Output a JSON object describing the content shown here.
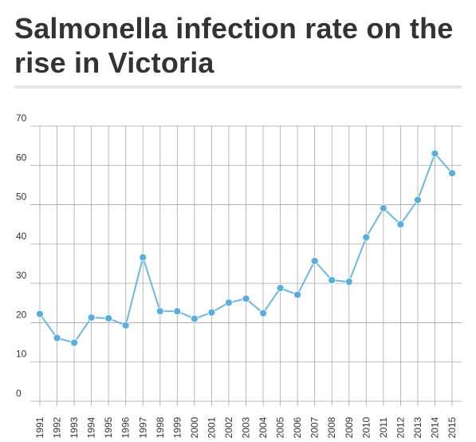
{
  "chart_data": {
    "type": "line",
    "title": "Salmonella infection rate on the rise in Victoria",
    "xlabel": "",
    "ylabel": "",
    "ylim": [
      0,
      70
    ],
    "yticks": [
      0,
      10,
      20,
      30,
      40,
      50,
      60,
      70
    ],
    "grid": true,
    "legend": "none",
    "colors": {
      "line": "#6bb8e0",
      "marker": "#5aaedb",
      "grid": "#a8a8a8",
      "text": "#333333"
    },
    "x": [
      "1991",
      "1992",
      "1993",
      "1994",
      "1995",
      "1996",
      "1997",
      "1998",
      "1999",
      "2000",
      "2001",
      "2002",
      "2003",
      "2004",
      "2005",
      "2006",
      "2007",
      "2008",
      "2009",
      "2010",
      "2011",
      "2012",
      "2013",
      "2014",
      "2015"
    ],
    "series": [
      {
        "values": [
          22.2,
          16.1,
          14.9,
          21.3,
          21.1,
          19.3,
          36.6,
          22.9,
          22.9,
          21.0,
          22.6,
          25.1,
          26.1,
          22.4,
          28.8,
          27.1,
          35.7,
          30.8,
          30.4,
          41.7,
          49.1,
          45.0,
          51.2,
          63.0,
          58.0
        ]
      }
    ]
  }
}
